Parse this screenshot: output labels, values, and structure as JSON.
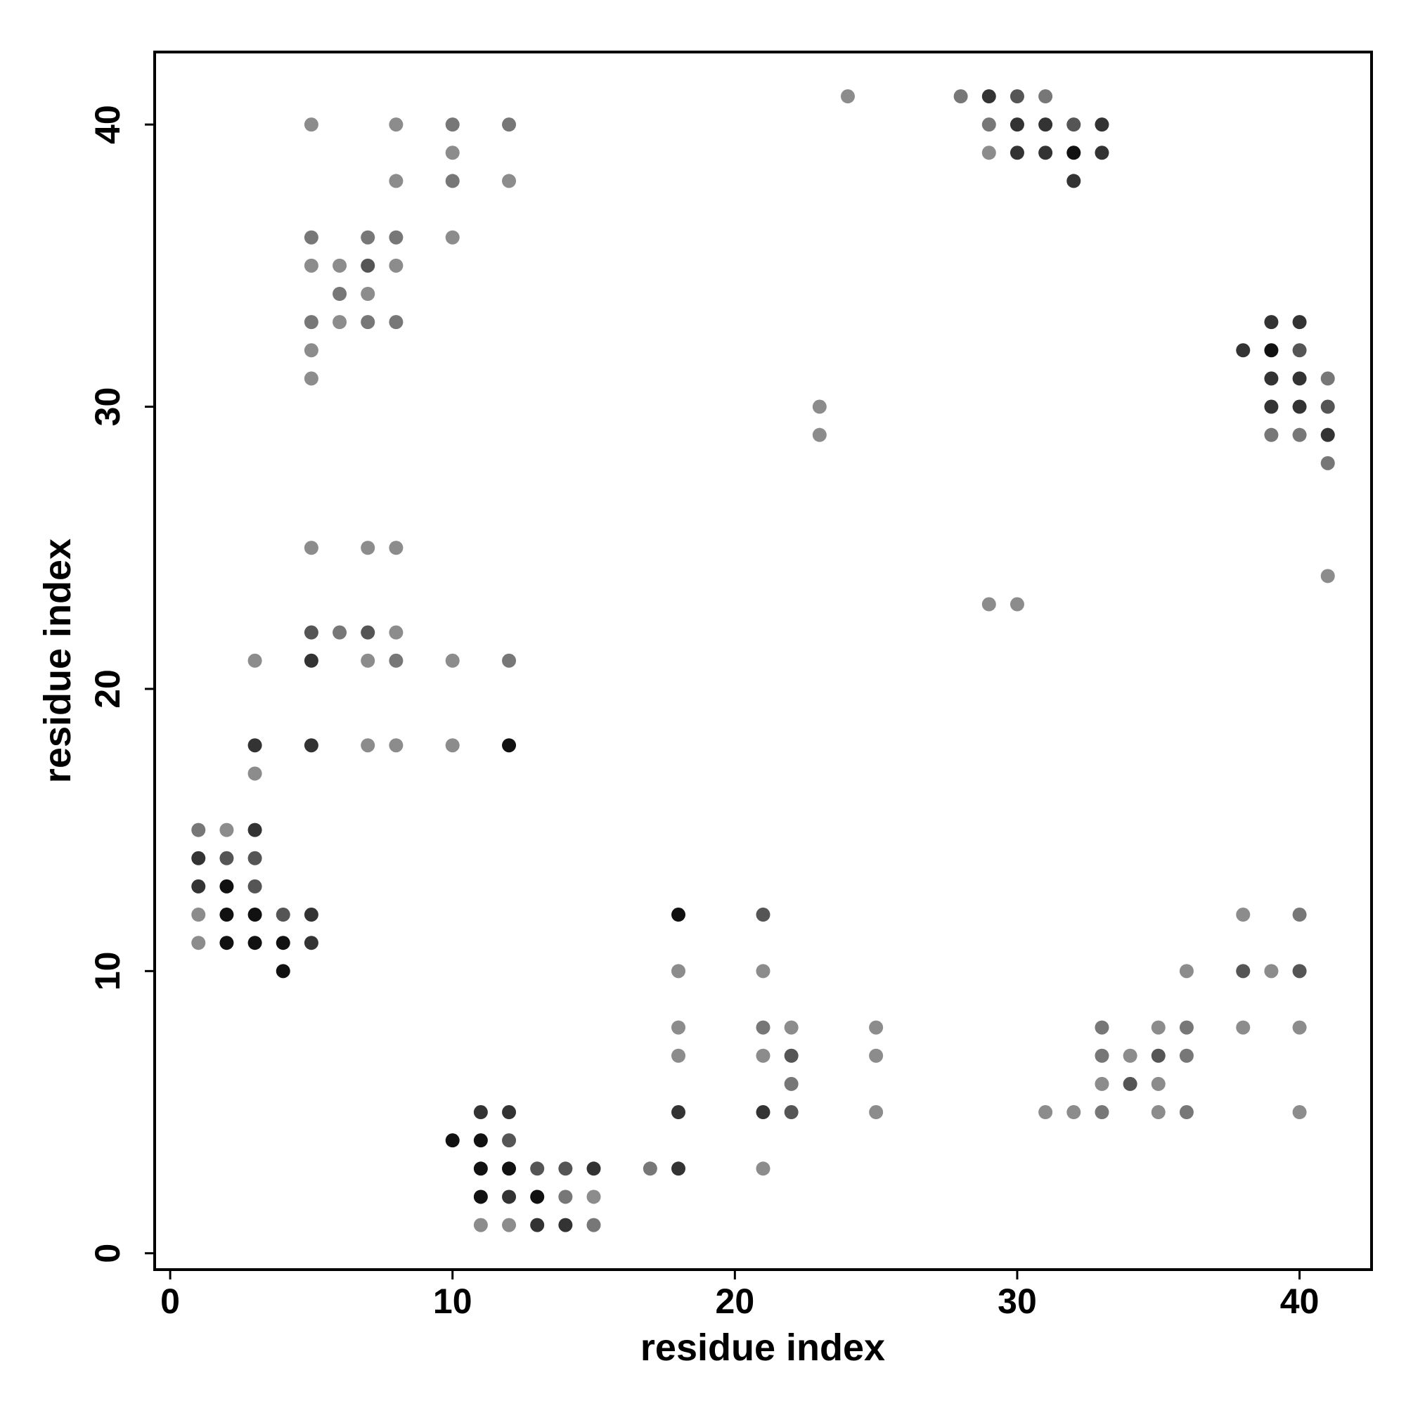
{
  "chart_data": {
    "type": "scatter",
    "xlabel": "residue index",
    "ylabel": "residue index",
    "xlim": [
      -0.55,
      42.55
    ],
    "ylim": [
      -0.58,
      42.57
    ],
    "xticks": [
      0,
      10,
      20,
      30,
      40
    ],
    "yticks": [
      0,
      10,
      20,
      30,
      40
    ],
    "x": [
      5,
      8,
      10,
      12,
      10,
      8,
      10,
      12,
      5,
      7,
      8,
      10,
      5,
      6,
      7,
      8,
      6,
      7,
      5,
      6,
      7,
      8,
      5,
      5,
      5,
      7,
      8,
      5,
      6,
      7,
      8,
      3,
      5,
      7,
      8,
      10,
      12,
      3,
      5,
      7,
      8,
      10,
      12,
      3,
      1,
      2,
      3,
      1,
      2,
      3,
      1,
      2,
      3,
      1,
      2,
      3,
      4,
      5,
      1,
      2,
      3,
      4,
      5,
      4,
      24,
      28,
      29,
      30,
      31,
      29,
      30,
      31,
      32,
      33,
      29,
      30,
      31,
      32,
      33,
      32,
      23,
      23,
      29,
      30,
      39,
      40,
      38,
      39,
      40,
      39,
      40,
      41,
      39,
      40,
      41,
      39,
      40,
      41,
      41,
      41,
      38,
      40,
      36,
      38,
      39,
      40,
      33,
      35,
      36,
      38,
      40,
      33,
      34,
      35,
      36,
      33,
      34,
      35,
      31,
      32,
      33,
      35,
      36,
      40,
      18,
      21,
      18,
      21,
      18,
      21,
      22,
      25,
      18,
      21,
      22,
      25,
      22,
      18,
      21,
      22,
      25,
      17,
      18,
      21,
      11,
      12,
      10,
      11,
      12,
      11,
      12,
      13,
      14,
      15,
      11,
      12,
      13,
      14,
      15,
      11,
      12,
      13,
      14,
      15
    ],
    "values": [
      40,
      40,
      40,
      40,
      39,
      38,
      38,
      38,
      36,
      36,
      36,
      36,
      35,
      35,
      35,
      35,
      34,
      34,
      33,
      33,
      33,
      33,
      32,
      31,
      25,
      25,
      25,
      22,
      22,
      22,
      22,
      21,
      21,
      21,
      21,
      21,
      21,
      18,
      18,
      18,
      18,
      18,
      18,
      17,
      15,
      15,
      15,
      14,
      14,
      14,
      13,
      13,
      13,
      12,
      12,
      12,
      12,
      12,
      11,
      11,
      11,
      11,
      11,
      10,
      41,
      41,
      41,
      41,
      41,
      40,
      40,
      40,
      40,
      40,
      39,
      39,
      39,
      39,
      39,
      38,
      30,
      29,
      23,
      23,
      33,
      33,
      32,
      32,
      32,
      31,
      31,
      31,
      30,
      30,
      30,
      29,
      29,
      29,
      28,
      24,
      12,
      12,
      10,
      10,
      10,
      10,
      8,
      8,
      8,
      8,
      8,
      7,
      7,
      7,
      7,
      6,
      6,
      6,
      5,
      5,
      5,
      5,
      5,
      5,
      12,
      12,
      10,
      10,
      8,
      8,
      8,
      8,
      7,
      7,
      7,
      7,
      6,
      5,
      5,
      5,
      5,
      3,
      3,
      3,
      5,
      5,
      4,
      4,
      4,
      3,
      3,
      3,
      3,
      3,
      2,
      2,
      2,
      2,
      2,
      1,
      1,
      1,
      1,
      1
    ],
    "colors": [
      "#8c8c8c",
      "#8c8c8c",
      "#777777",
      "#777777",
      "#8c8c8c",
      "#8c8c8c",
      "#777777",
      "#8c8c8c",
      "#777777",
      "#777777",
      "#777777",
      "#8c8c8c",
      "#8c8c8c",
      "#8c8c8c",
      "#555555",
      "#8c8c8c",
      "#777777",
      "#8c8c8c",
      "#777777",
      "#8c8c8c",
      "#777777",
      "#777777",
      "#8c8c8c",
      "#8c8c8c",
      "#8c8c8c",
      "#8c8c8c",
      "#8c8c8c",
      "#555555",
      "#777777",
      "#555555",
      "#8c8c8c",
      "#8c8c8c",
      "#333333",
      "#8c8c8c",
      "#777777",
      "#8c8c8c",
      "#777777",
      "#333333",
      "#333333",
      "#8c8c8c",
      "#8c8c8c",
      "#8c8c8c",
      "#111111",
      "#8c8c8c",
      "#777777",
      "#8c8c8c",
      "#333333",
      "#333333",
      "#555555",
      "#555555",
      "#333333",
      "#111111",
      "#555555",
      "#8c8c8c",
      "#111111",
      "#111111",
      "#555555",
      "#333333",
      "#8c8c8c",
      "#111111",
      "#111111",
      "#111111",
      "#333333",
      "#111111",
      "#8c8c8c",
      "#777777",
      "#333333",
      "#555555",
      "#777777",
      "#777777",
      "#333333",
      "#333333",
      "#555555",
      "#333333",
      "#8c8c8c",
      "#333333",
      "#333333",
      "#111111",
      "#333333",
      "#333333",
      "#8c8c8c",
      "#8c8c8c",
      "#8c8c8c",
      "#8c8c8c",
      "#333333",
      "#333333",
      "#333333",
      "#111111",
      "#555555",
      "#333333",
      "#333333",
      "#777777",
      "#333333",
      "#333333",
      "#555555",
      "#777777",
      "#777777",
      "#333333",
      "#777777",
      "#8c8c8c",
      "#8c8c8c",
      "#777777",
      "#8c8c8c",
      "#555555",
      "#8c8c8c",
      "#555555",
      "#777777",
      "#8c8c8c",
      "#777777",
      "#8c8c8c",
      "#8c8c8c",
      "#777777",
      "#8c8c8c",
      "#555555",
      "#777777",
      "#8c8c8c",
      "#555555",
      "#8c8c8c",
      "#8c8c8c",
      "#8c8c8c",
      "#777777",
      "#8c8c8c",
      "#777777",
      "#8c8c8c",
      "#111111",
      "#555555",
      "#8c8c8c",
      "#8c8c8c",
      "#8c8c8c",
      "#777777",
      "#8c8c8c",
      "#8c8c8c",
      "#8c8c8c",
      "#8c8c8c",
      "#555555",
      "#8c8c8c",
      "#777777",
      "#333333",
      "#333333",
      "#555555",
      "#8c8c8c",
      "#777777",
      "#333333",
      "#8c8c8c",
      "#333333",
      "#333333",
      "#111111",
      "#111111",
      "#555555",
      "#111111",
      "#111111",
      "#555555",
      "#555555",
      "#333333",
      "#111111",
      "#333333",
      "#111111",
      "#777777",
      "#8c8c8c",
      "#8c8c8c",
      "#8c8c8c",
      "#333333",
      "#333333",
      "#777777"
    ]
  }
}
